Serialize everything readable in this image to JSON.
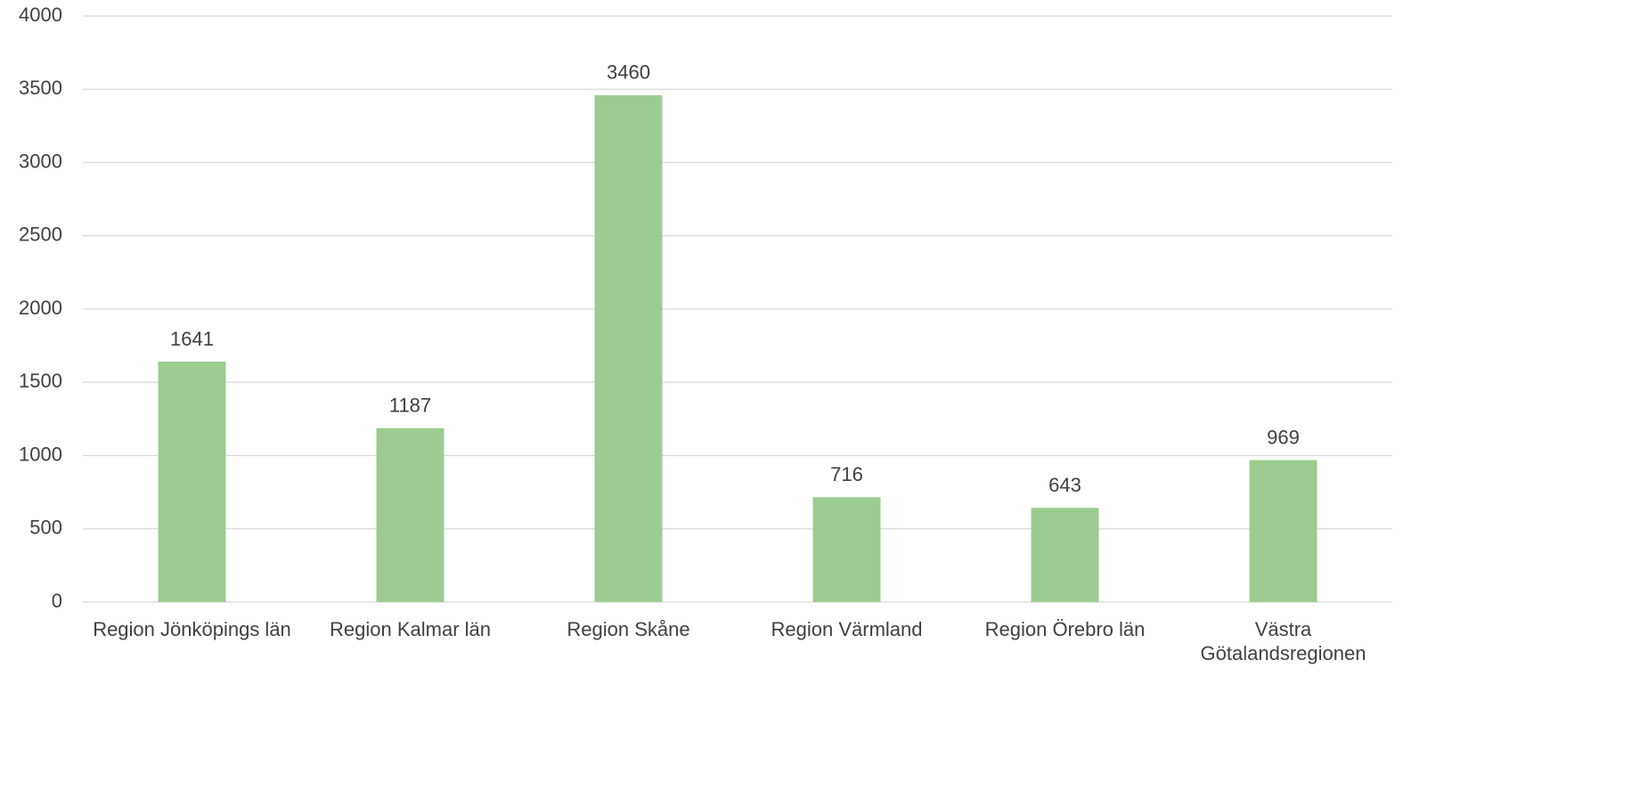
{
  "chart_data": {
    "type": "bar",
    "categories": [
      "Region Jönköpings län",
      "Region Kalmar län",
      "Region Skåne",
      "Region Värmland",
      "Region Örebro län",
      "Västra Götalandsregionen"
    ],
    "values": [
      1641,
      1187,
      3460,
      716,
      643,
      969
    ],
    "color": "#9ccc8f",
    "ylim": [
      0,
      4000
    ],
    "yticks": [
      0,
      500,
      1000,
      1500,
      2000,
      2500,
      3000,
      3500,
      4000
    ],
    "grid": true
  }
}
